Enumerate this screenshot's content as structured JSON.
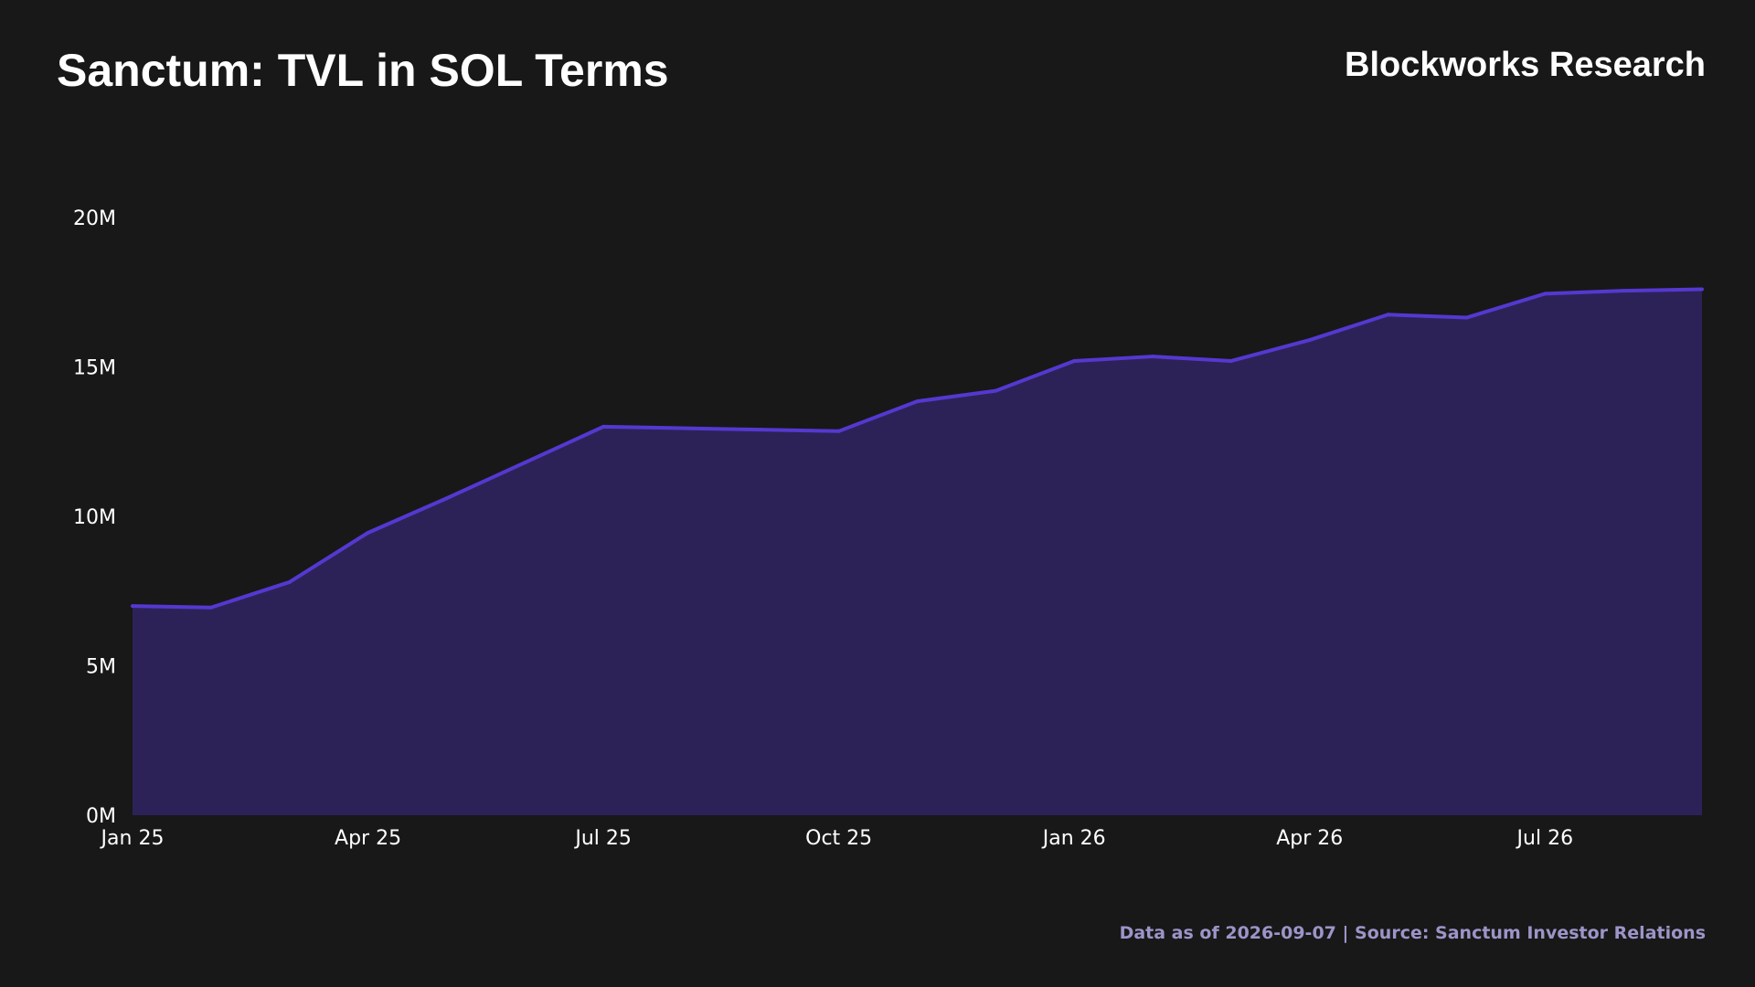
{
  "header": {
    "title": "Sanctum: TVL in SOL Terms",
    "brand": "Blockworks Research"
  },
  "footer": {
    "source_text": "Data as of 2026-09-07 | Source: Sanctum Investor Relations"
  },
  "colors": {
    "background": "#181818",
    "line": "#5538d0",
    "area": "#2d2257",
    "footer_text": "#9d94c8"
  },
  "chart_data": {
    "type": "area",
    "title": "Sanctum: TVL in SOL Terms",
    "xlabel": "",
    "ylabel": "",
    "x": [
      "2025-01",
      "2025-02",
      "2025-03",
      "2025-04",
      "2025-05",
      "2025-06",
      "2025-07",
      "2025-08",
      "2025-09",
      "2025-10",
      "2025-11",
      "2025-12",
      "2026-01",
      "2026-02",
      "2026-03",
      "2026-04",
      "2026-05",
      "2026-06",
      "2026-07",
      "2026-08",
      "2026-09"
    ],
    "series": [
      {
        "values": [
          7.0,
          6.95,
          7.8,
          9.45,
          10.6,
          11.8,
          13.0,
          12.95,
          12.9,
          12.85,
          13.85,
          14.2,
          15.2,
          15.35,
          15.2,
          15.9,
          16.75,
          16.65,
          17.45,
          17.55,
          17.6
        ]
      }
    ],
    "ylim": [
      0,
      20
    ],
    "y_ticks": [
      0,
      5,
      10,
      15,
      20
    ],
    "y_tick_labels": [
      "0M",
      "5M",
      "10M",
      "15M",
      "20M"
    ],
    "x_tick_labels": [
      "Jan 25",
      "Apr 25",
      "Jul 25",
      "Oct 25",
      "Jan 26",
      "Apr 26",
      "Jul 26"
    ],
    "x_tick_positions": [
      0,
      3,
      6,
      9,
      12,
      15,
      18
    ],
    "grid": false,
    "legend": "none"
  }
}
